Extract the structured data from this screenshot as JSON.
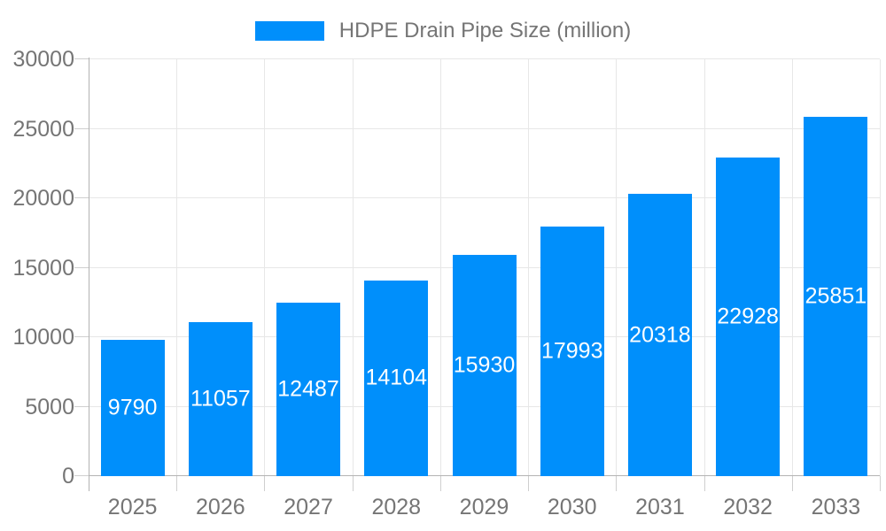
{
  "chart_data": {
    "type": "bar",
    "title": "HDPE Drain Pipe Size (million)",
    "categories": [
      "2025",
      "2026",
      "2027",
      "2028",
      "2029",
      "2030",
      "2031",
      "2032",
      "2033"
    ],
    "values": [
      9790,
      11057,
      12487,
      14104,
      15930,
      17993,
      20318,
      22928,
      25851
    ],
    "xlabel": "",
    "ylabel": "",
    "ylim": [
      0,
      30000
    ],
    "ytick_step": 5000,
    "ytick_labels": [
      "0",
      "5000",
      "10000",
      "15000",
      "20000",
      "25000",
      "30000"
    ],
    "grid": "on",
    "legend_position": "top",
    "value_label_position": "inside-center",
    "colors": {
      "bar": "#008FFB",
      "value_label": "#FFFFFF",
      "axis_text": "#757575",
      "legend_text": "#757575",
      "gridline": "#E7E7E7",
      "axis_line": "#B3B3B3",
      "tick": "#CFCFCF",
      "background": "#FFFFFF"
    }
  }
}
